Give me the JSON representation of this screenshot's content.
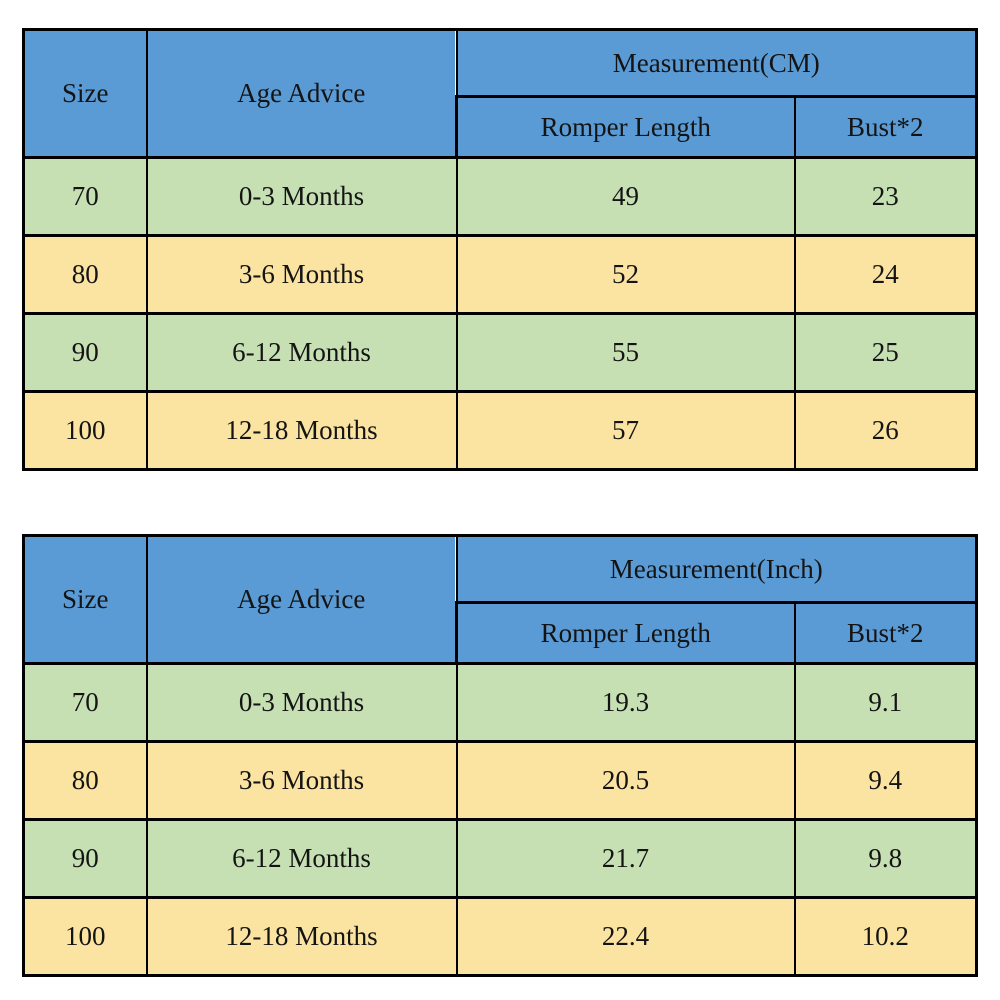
{
  "colors": {
    "header_bg": "#5b9bd5",
    "size_col_bg": "#ffff00",
    "row_green": "#c6e0b4",
    "row_gold": "#fbe3a1",
    "border_color": "#000000",
    "text_color": "#141414",
    "page_bg": "#ffffff"
  },
  "chart_data": [
    {
      "type": "table",
      "title": "Measurement(CM)",
      "group_header": "Measurement(CM)",
      "columns": [
        "Size",
        "Age Advice",
        "Romper Length",
        "Bust*2"
      ],
      "rows": [
        [
          "70",
          "0-3 Months",
          "49",
          "23"
        ],
        [
          "80",
          "3-6 Months",
          "52",
          "24"
        ],
        [
          "90",
          "6-12 Months",
          "55",
          "25"
        ],
        [
          "100",
          "12-18 Months",
          "57",
          "26"
        ]
      ]
    },
    {
      "type": "table",
      "title": "Measurement(Inch)",
      "group_header": "Measurement(Inch)",
      "columns": [
        "Size",
        "Age Advice",
        "Romper Length",
        "Bust*2"
      ],
      "rows": [
        [
          "70",
          "0-3 Months",
          "19.3",
          "9.1"
        ],
        [
          "80",
          "3-6 Months",
          "20.5",
          "9.4"
        ],
        [
          "90",
          "6-12 Months",
          "21.7",
          "9.8"
        ],
        [
          "100",
          "12-18 Months",
          "22.4",
          "10.2"
        ]
      ]
    }
  ]
}
